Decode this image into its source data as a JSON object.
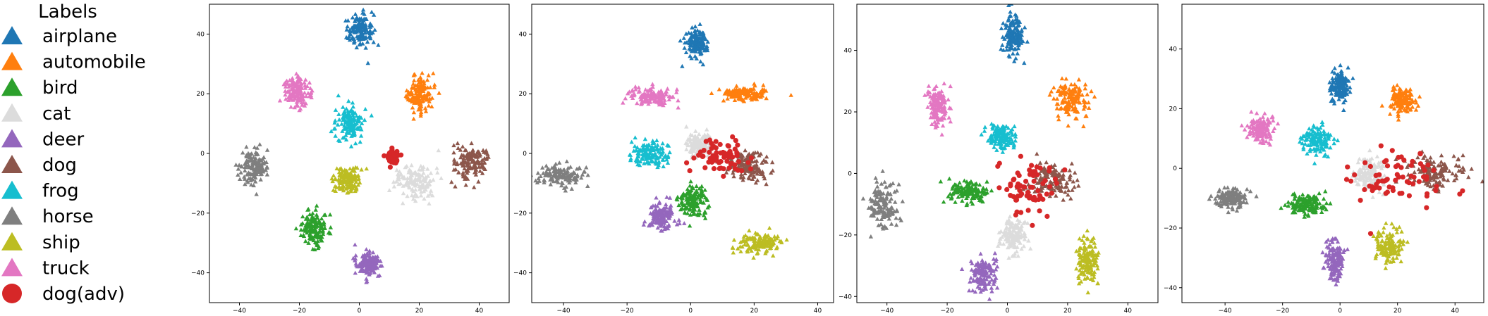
{
  "legend": {
    "title": "Labels",
    "items": [
      {
        "label": "airplane",
        "color": "#1f77b4",
        "marker": "triangle"
      },
      {
        "label": "automobile",
        "color": "#ff7f0e",
        "marker": "triangle"
      },
      {
        "label": "bird",
        "color": "#2ca02c",
        "marker": "triangle"
      },
      {
        "label": "cat",
        "color": "#dcdcdc",
        "marker": "triangle"
      },
      {
        "label": "deer",
        "color": "#9467bd",
        "marker": "triangle"
      },
      {
        "label": "dog",
        "color": "#8c564b",
        "marker": "triangle"
      },
      {
        "label": "frog",
        "color": "#17becf",
        "marker": "triangle"
      },
      {
        "label": "horse",
        "color": "#7f7f7f",
        "marker": "triangle"
      },
      {
        "label": "ship",
        "color": "#bcbd22",
        "marker": "triangle"
      },
      {
        "label": "truck",
        "color": "#e377c2",
        "marker": "triangle"
      },
      {
        "label": "dog(adv)",
        "color": "#d62728",
        "marker": "circle"
      }
    ]
  },
  "chart_data": [
    {
      "type": "scatter",
      "title": "",
      "xlabel": "",
      "ylabel": "",
      "xlim": [
        -50,
        50
      ],
      "ylim": [
        -50,
        50
      ],
      "xticks": [
        -40,
        -20,
        0,
        20,
        40
      ],
      "yticks": [
        -40,
        -20,
        0,
        20,
        40
      ],
      "grid": false,
      "series": [
        {
          "name": "airplane",
          "center": [
            0,
            41
          ],
          "spread": [
            4,
            5
          ]
        },
        {
          "name": "automobile",
          "center": [
            20,
            20
          ],
          "spread": [
            4,
            5
          ]
        },
        {
          "name": "bird",
          "center": [
            -15,
            -25
          ],
          "spread": [
            4,
            5
          ]
        },
        {
          "name": "cat",
          "center": [
            19,
            -9
          ],
          "spread": [
            6,
            5
          ]
        },
        {
          "name": "deer",
          "center": [
            3,
            -37
          ],
          "spread": [
            4,
            4
          ]
        },
        {
          "name": "dog",
          "center": [
            37,
            -3
          ],
          "spread": [
            5,
            5
          ]
        },
        {
          "name": "frog",
          "center": [
            -3,
            10
          ],
          "spread": [
            4,
            5
          ]
        },
        {
          "name": "horse",
          "center": [
            -35,
            -4
          ],
          "spread": [
            4,
            5
          ]
        },
        {
          "name": "ship",
          "center": [
            -4,
            -9
          ],
          "spread": [
            4,
            4
          ]
        },
        {
          "name": "truck",
          "center": [
            -21,
            21
          ],
          "spread": [
            4,
            5
          ]
        },
        {
          "name": "dog(adv)",
          "center": [
            11,
            -1
          ],
          "spread": [
            2,
            2
          ]
        }
      ]
    },
    {
      "type": "scatter",
      "title": "",
      "xlabel": "",
      "ylabel": "",
      "xlim": [
        -50,
        45
      ],
      "ylim": [
        -50,
        50
      ],
      "xticks": [
        -40,
        -20,
        0,
        20,
        40
      ],
      "yticks": [
        -40,
        -20,
        0,
        20,
        40
      ],
      "grid": false,
      "series": [
        {
          "name": "airplane",
          "center": [
            2,
            37
          ],
          "spread": [
            3,
            4
          ]
        },
        {
          "name": "automobile",
          "center": [
            17,
            20
          ],
          "spread": [
            7,
            2
          ]
        },
        {
          "name": "bird",
          "center": [
            1,
            -16
          ],
          "spread": [
            4,
            5
          ]
        },
        {
          "name": "cat",
          "center": [
            3,
            3
          ],
          "spread": [
            4,
            4
          ]
        },
        {
          "name": "deer",
          "center": [
            -9,
            -21
          ],
          "spread": [
            4,
            4
          ]
        },
        {
          "name": "dog",
          "center": [
            18,
            -4
          ],
          "spread": [
            6,
            4
          ]
        },
        {
          "name": "frog",
          "center": [
            -13,
            0
          ],
          "spread": [
            5,
            4
          ]
        },
        {
          "name": "horse",
          "center": [
            -41,
            -7
          ],
          "spread": [
            7,
            3
          ]
        },
        {
          "name": "ship",
          "center": [
            22,
            -30
          ],
          "spread": [
            6,
            3
          ]
        },
        {
          "name": "truck",
          "center": [
            -12,
            19
          ],
          "spread": [
            6,
            3
          ]
        },
        {
          "name": "dog(adv)",
          "center": [
            10,
            -2
          ],
          "spread": [
            8,
            6
          ]
        }
      ]
    },
    {
      "type": "scatter",
      "title": "",
      "xlabel": "",
      "ylabel": "",
      "xlim": [
        -50,
        50
      ],
      "ylim": [
        -42,
        55
      ],
      "xticks": [
        -40,
        -20,
        0,
        20,
        40
      ],
      "yticks": [
        -40,
        -20,
        0,
        20,
        40
      ],
      "grid": false,
      "series": [
        {
          "name": "airplane",
          "center": [
            2,
            45
          ],
          "spread": [
            3,
            6
          ]
        },
        {
          "name": "automobile",
          "center": [
            21,
            24
          ],
          "spread": [
            5,
            6
          ]
        },
        {
          "name": "bird",
          "center": [
            -13,
            -6
          ],
          "spread": [
            6,
            3
          ]
        },
        {
          "name": "cat",
          "center": [
            2,
            -20
          ],
          "spread": [
            4,
            5
          ]
        },
        {
          "name": "deer",
          "center": [
            -8,
            -33
          ],
          "spread": [
            4,
            5
          ]
        },
        {
          "name": "dog",
          "center": [
            15,
            -2
          ],
          "spread": [
            7,
            5
          ]
        },
        {
          "name": "frog",
          "center": [
            -2,
            12
          ],
          "spread": [
            4,
            4
          ]
        },
        {
          "name": "horse",
          "center": [
            -41,
            -10
          ],
          "spread": [
            4,
            7
          ]
        },
        {
          "name": "ship",
          "center": [
            27,
            -28
          ],
          "spread": [
            3,
            7
          ]
        },
        {
          "name": "truck",
          "center": [
            -23,
            22
          ],
          "spread": [
            3,
            6
          ]
        },
        {
          "name": "dog(adv)",
          "center": [
            7,
            -4
          ],
          "spread": [
            9,
            9
          ]
        }
      ]
    },
    {
      "type": "scatter",
      "title": "",
      "xlabel": "",
      "ylabel": "",
      "xlim": [
        -55,
        50
      ],
      "ylim": [
        -45,
        55
      ],
      "xticks": [
        -40,
        -20,
        0,
        20,
        40
      ],
      "yticks": [
        -40,
        -20,
        0,
        20,
        40
      ],
      "grid": false,
      "series": [
        {
          "name": "airplane",
          "center": [
            0,
            28
          ],
          "spread": [
            3,
            5
          ]
        },
        {
          "name": "automobile",
          "center": [
            22,
            23
          ],
          "spread": [
            4,
            4
          ]
        },
        {
          "name": "bird",
          "center": [
            -12,
            -12
          ],
          "spread": [
            6,
            3
          ]
        },
        {
          "name": "cat",
          "center": [
            10,
            -2
          ],
          "spread": [
            5,
            5
          ]
        },
        {
          "name": "deer",
          "center": [
            -2,
            -31
          ],
          "spread": [
            3,
            6
          ]
        },
        {
          "name": "dog",
          "center": [
            33,
            -1
          ],
          "spread": [
            9,
            5
          ]
        },
        {
          "name": "frog",
          "center": [
            -8,
            9
          ],
          "spread": [
            5,
            4
          ]
        },
        {
          "name": "horse",
          "center": [
            -38,
            -10
          ],
          "spread": [
            5,
            3
          ]
        },
        {
          "name": "ship",
          "center": [
            17,
            -26
          ],
          "spread": [
            4,
            5
          ]
        },
        {
          "name": "truck",
          "center": [
            -27,
            13
          ],
          "spread": [
            4,
            4
          ]
        },
        {
          "name": "dog(adv)",
          "center": [
            20,
            -3
          ],
          "spread": [
            14,
            9
          ]
        }
      ]
    }
  ]
}
